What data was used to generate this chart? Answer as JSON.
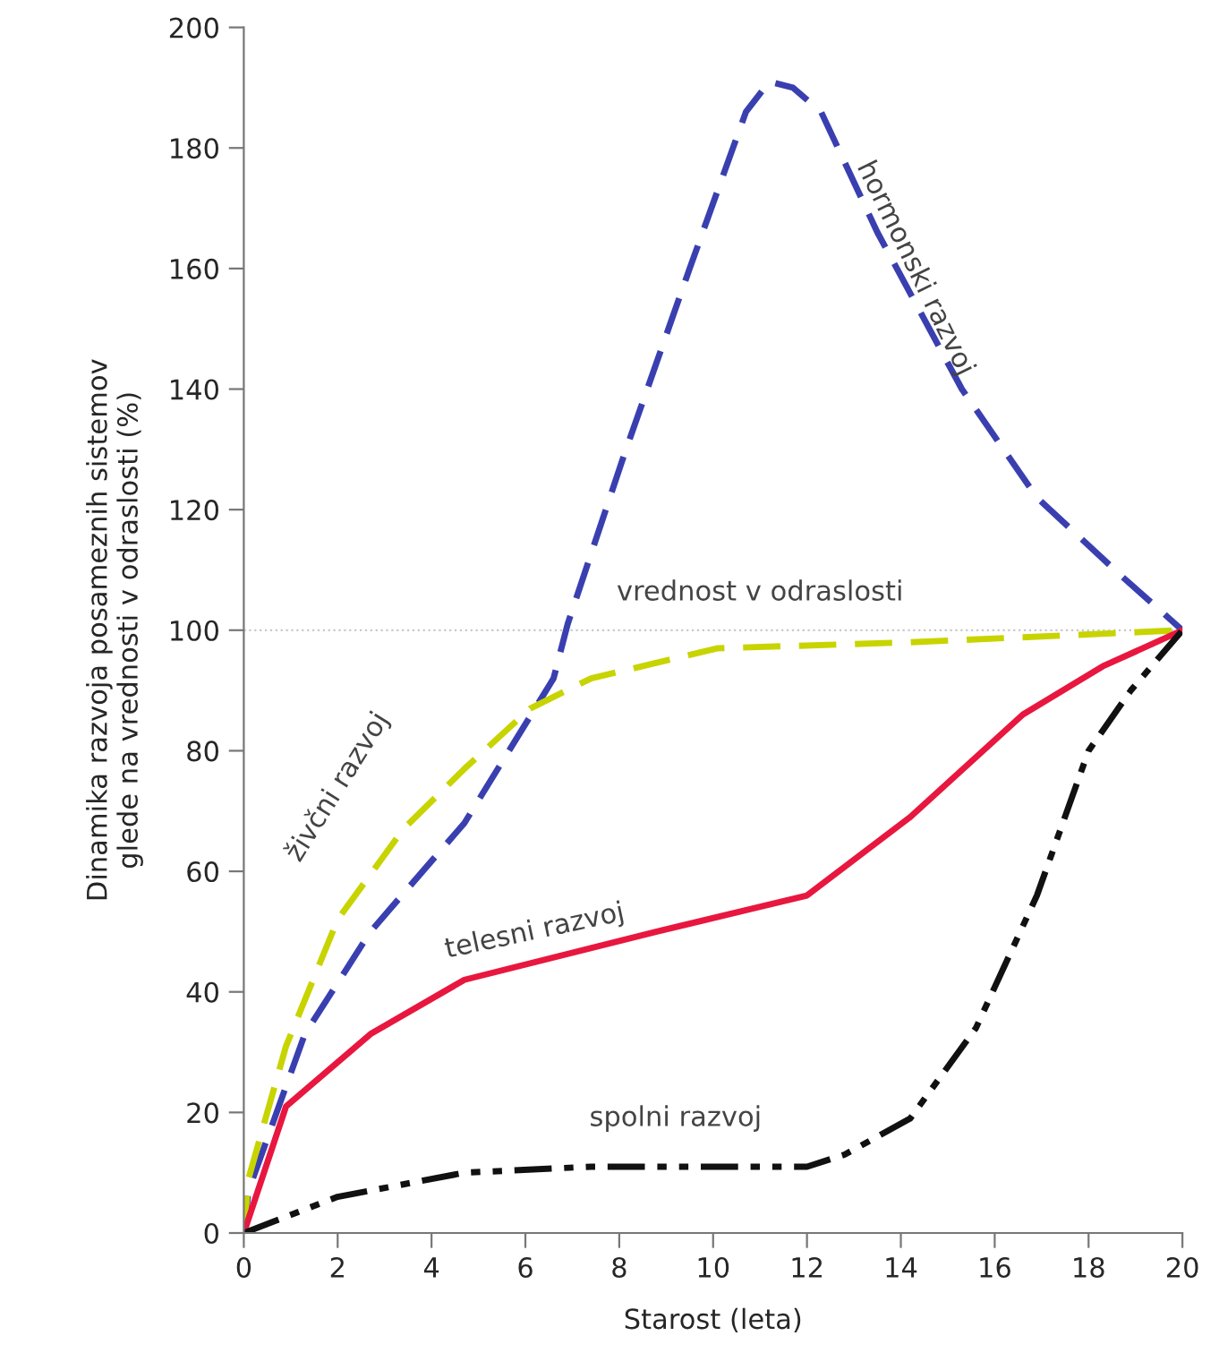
{
  "chart_data": {
    "type": "line",
    "xlabel": "Starost (leta)",
    "ylabel": "Dinamika razvoja posameznih sistemov\nglede na vrednosti v odraslosti (%)",
    "xlim": [
      0,
      20
    ],
    "xticks": [
      0,
      2,
      4,
      6,
      8,
      10,
      12,
      14,
      16,
      18,
      20
    ],
    "ylim": [
      0,
      200
    ],
    "yticks": [
      0,
      20,
      40,
      60,
      80,
      100,
      120,
      140,
      160,
      180,
      200
    ],
    "grid": false,
    "legend": false,
    "ref_lines": [
      {
        "axis": "y",
        "value": 100,
        "label": "vrednost v odraslosti",
        "color": "#c8c8c8",
        "line_style": "dotted"
      }
    ],
    "series": [
      {
        "name": "hormonski razvoj",
        "color": "#3a3fb0",
        "line_style": "dashed",
        "x": [
          0,
          0.1,
          1.3,
          2.7,
          4.7,
          6.6,
          6.9,
          8.1,
          9.5,
          10.7,
          11.2,
          11.7,
          12.3,
          13.5,
          15.3,
          16.9,
          18.7,
          20
        ],
        "values": [
          0,
          7,
          33,
          50,
          68,
          92,
          101,
          129,
          160,
          186,
          191,
          190,
          186,
          166,
          140,
          122,
          109,
          100
        ]
      },
      {
        "name": "živčni razvoj",
        "color": "#c8d400",
        "line_style": "dashed",
        "x": [
          0,
          0.1,
          0.9,
          2.0,
          3.4,
          4.7,
          6.1,
          7.4,
          10.1,
          14.2,
          20
        ],
        "values": [
          0,
          9,
          31,
          52,
          67,
          77,
          87,
          92,
          97,
          98,
          100
        ]
      },
      {
        "name": "telesni razvoj",
        "color": "#e8173f",
        "line_style": "solid",
        "x": [
          0,
          0.9,
          2.7,
          4.7,
          8.8,
          12.0,
          14.2,
          16.6,
          18.3,
          20
        ],
        "values": [
          0,
          21,
          33,
          42,
          50,
          56,
          69,
          86,
          94,
          100
        ]
      },
      {
        "name": "spolni razvoj",
        "color": "#111111",
        "line_style": "dashdotdot",
        "x": [
          0,
          2.0,
          4.7,
          7.4,
          12.0,
          12.8,
          14.2,
          15.6,
          16.9,
          18.0,
          18.9,
          20
        ],
        "values": [
          0,
          6,
          10,
          11,
          11,
          13,
          19,
          34,
          56,
          80,
          90,
          100
        ]
      }
    ]
  }
}
